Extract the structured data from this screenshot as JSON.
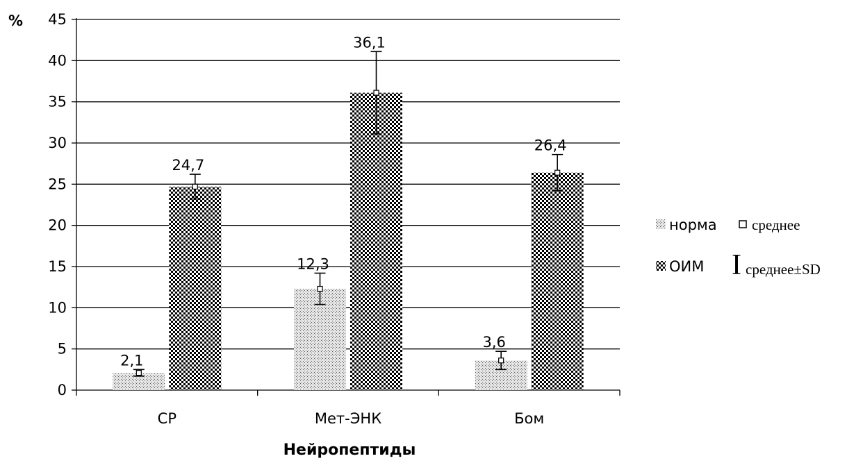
{
  "chart_data": {
    "type": "bar",
    "unit_label": "%",
    "xlabel": "Нейропептиды",
    "ylabel": "",
    "ylim": [
      0,
      45
    ],
    "y_ticks": [
      0,
      5,
      10,
      15,
      20,
      25,
      30,
      35,
      40,
      45
    ],
    "grid": true,
    "categories": [
      "СР",
      "Мет-ЭНК",
      "Бом"
    ],
    "series": [
      {
        "name": "норма",
        "values": [
          2.1,
          12.3,
          3.6
        ],
        "value_labels": [
          "2,1",
          "12,3",
          "3,6"
        ],
        "sd": [
          0.4,
          1.9,
          1.1
        ],
        "pattern": "fine-dots"
      },
      {
        "name": "ОИМ",
        "values": [
          24.7,
          36.1,
          26.4
        ],
        "value_labels": [
          "24,7",
          "36,1",
          "26,4"
        ],
        "sd": [
          1.5,
          5.0,
          2.2
        ],
        "pattern": "checker"
      }
    ],
    "legend": {
      "placement": "right",
      "series_entries": [
        "норма",
        "ОИМ"
      ],
      "marker_entry": "среднее",
      "errorbar_entry": "среднее±SD",
      "errorbar_glyph": "I"
    }
  }
}
